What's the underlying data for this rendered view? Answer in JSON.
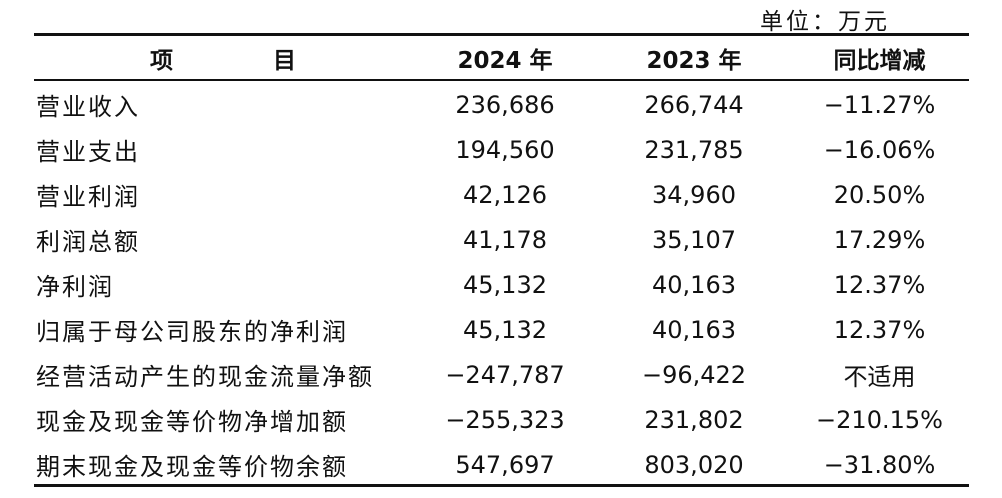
{
  "unit_label": "单位：万元",
  "table": {
    "headers": {
      "item": "项  目",
      "year_current": "2024 年",
      "year_previous": "2023 年",
      "change": "同比增减"
    },
    "rows": [
      {
        "item": "营业收入",
        "y2024": "236,686",
        "y2023": "266,744",
        "change": "−11.27%"
      },
      {
        "item": "营业支出",
        "y2024": "194,560",
        "y2023": "231,785",
        "change": "−16.06%"
      },
      {
        "item": "营业利润",
        "y2024": "42,126",
        "y2023": "34,960",
        "change": "20.50%"
      },
      {
        "item": "利润总额",
        "y2024": "41,178",
        "y2023": "35,107",
        "change": "17.29%"
      },
      {
        "item": "净利润",
        "y2024": "45,132",
        "y2023": "40,163",
        "change": "12.37%"
      },
      {
        "item": "归属于母公司股东的净利润",
        "y2024": "45,132",
        "y2023": "40,163",
        "change": "12.37%"
      },
      {
        "item": "经营活动产生的现金流量净额",
        "y2024": "−247,787",
        "y2023": "−96,422",
        "change": "不适用"
      },
      {
        "item": "现金及现金等价物净增加额",
        "y2024": "−255,323",
        "y2023": "231,802",
        "change": "−210.15%"
      },
      {
        "item": "期末现金及现金等价物余额",
        "y2024": "547,697",
        "y2023": "803,020",
        "change": "−31.80%"
      }
    ]
  }
}
